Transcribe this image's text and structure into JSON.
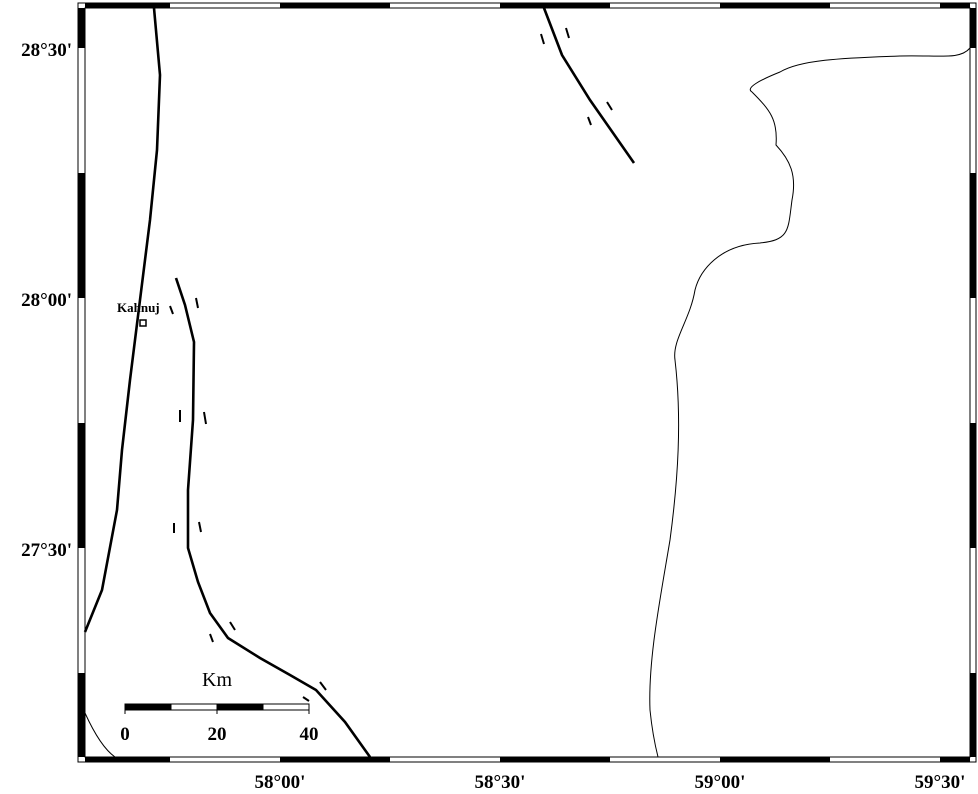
{
  "lat_labels": [
    "28°30'",
    "28°00'",
    "27°30'"
  ],
  "lon_labels": [
    "58°00'",
    "58°30'",
    "59°00'",
    "59°30'"
  ],
  "place": "Kahnuj",
  "scale": {
    "unit": "Km",
    "labels": [
      "0",
      "20",
      "40"
    ]
  }
}
